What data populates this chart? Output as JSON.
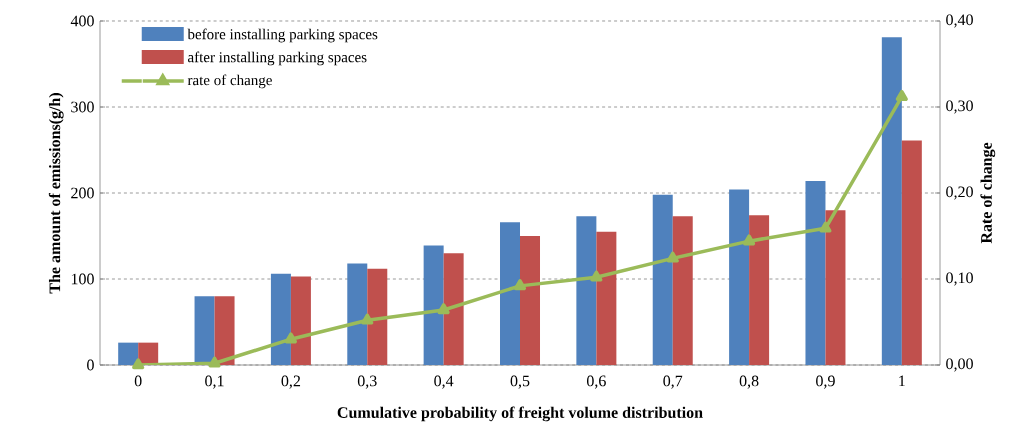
{
  "chart_data": {
    "type": "bar",
    "xlabel": "Cumulative probability of freight volume distribution",
    "ylabel": "The amount of emissions(g/h)",
    "y2label": "Rate of change",
    "categories": [
      "0",
      "0,1",
      "0,2",
      "0,3",
      "0,4",
      "0,5",
      "0,6",
      "0,7",
      "0,8",
      "0,9",
      "1"
    ],
    "series": [
      {
        "name": "before installing parking spaces",
        "color": "#4f81bd",
        "values": [
          26,
          80,
          106,
          118,
          139,
          166,
          173,
          198,
          204,
          214,
          381
        ]
      },
      {
        "name": "after installing parking spaces",
        "color": "#c0504d",
        "values": [
          26,
          80,
          103,
          112,
          130,
          150,
          155,
          173,
          174,
          180,
          261
        ]
      },
      {
        "name": "rate of change",
        "type": "line",
        "axis": "y2",
        "color": "#9bbb59",
        "values": [
          0,
          0.002,
          0.03,
          0.052,
          0.064,
          0.092,
          0.102,
          0.124,
          0.144,
          0.159,
          0.312
        ]
      }
    ],
    "ylim": [
      0,
      400
    ],
    "yticks": [
      0,
      100,
      200,
      300,
      400
    ],
    "y2lim": [
      0,
      0.4
    ],
    "y2ticks": [
      {
        "value": 0,
        "label": "0,00"
      },
      {
        "value": 0.1,
        "label": "0,10"
      },
      {
        "value": 0.2,
        "label": "0,20"
      },
      {
        "value": 0.3,
        "label": "0,30"
      },
      {
        "value": 0.4,
        "label": "0,40"
      }
    ],
    "grid": "y",
    "legend": "top left",
    "marker": "triangle",
    "line_style": "solid"
  }
}
